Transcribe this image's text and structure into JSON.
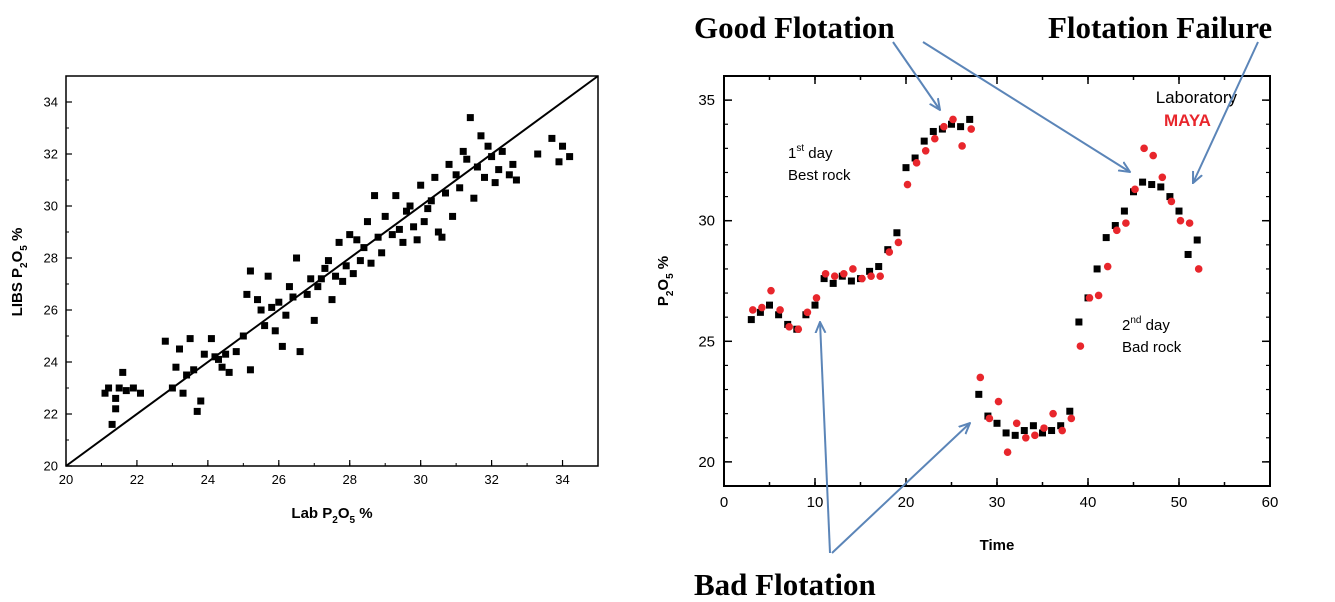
{
  "chart_data": [
    {
      "type": "scatter",
      "xlabel": "Lab P2O5 %",
      "ylabel": "LIBS P2O5 %",
      "xlim": [
        20,
        35
      ],
      "ylim": [
        20,
        35
      ],
      "xticks": [
        "20",
        "22",
        "24",
        "26",
        "28",
        "30",
        "32",
        "34"
      ],
      "yticks": [
        "20",
        "22",
        "24",
        "26",
        "28",
        "30",
        "32",
        "34"
      ],
      "reference_line": {
        "from": [
          20,
          20
        ],
        "to": [
          35,
          35
        ]
      },
      "series": [
        {
          "marker": "square",
          "color": "#000000",
          "points": [
            [
              21.1,
              22.8
            ],
            [
              21.2,
              23.0
            ],
            [
              21.3,
              21.6
            ],
            [
              21.4,
              22.6
            ],
            [
              21.4,
              22.2
            ],
            [
              21.5,
              23.0
            ],
            [
              21.6,
              23.6
            ],
            [
              21.7,
              22.9
            ],
            [
              21.9,
              23.0
            ],
            [
              22.1,
              22.8
            ],
            [
              22.8,
              24.8
            ],
            [
              23.0,
              23.0
            ],
            [
              23.1,
              23.8
            ],
            [
              23.2,
              24.5
            ],
            [
              23.3,
              22.8
            ],
            [
              23.4,
              23.5
            ],
            [
              23.5,
              24.9
            ],
            [
              23.6,
              23.7
            ],
            [
              23.7,
              22.1
            ],
            [
              23.8,
              22.5
            ],
            [
              23.9,
              24.3
            ],
            [
              24.1,
              24.9
            ],
            [
              24.2,
              24.2
            ],
            [
              24.3,
              24.1
            ],
            [
              24.4,
              23.8
            ],
            [
              24.5,
              24.3
            ],
            [
              24.6,
              23.6
            ],
            [
              24.8,
              24.4
            ],
            [
              25.0,
              25.0
            ],
            [
              25.2,
              23.7
            ],
            [
              25.1,
              26.6
            ],
            [
              25.2,
              27.5
            ],
            [
              25.4,
              26.4
            ],
            [
              25.5,
              26.0
            ],
            [
              25.6,
              25.4
            ],
            [
              25.7,
              27.3
            ],
            [
              25.8,
              26.1
            ],
            [
              25.9,
              25.2
            ],
            [
              26.0,
              26.3
            ],
            [
              26.1,
              24.6
            ],
            [
              26.2,
              25.8
            ],
            [
              26.3,
              26.9
            ],
            [
              26.4,
              26.5
            ],
            [
              26.5,
              28.0
            ],
            [
              26.6,
              24.4
            ],
            [
              26.8,
              26.6
            ],
            [
              26.9,
              27.2
            ],
            [
              27.0,
              25.6
            ],
            [
              27.1,
              26.9
            ],
            [
              27.2,
              27.2
            ],
            [
              27.3,
              27.6
            ],
            [
              27.4,
              27.9
            ],
            [
              27.5,
              26.4
            ],
            [
              27.6,
              27.3
            ],
            [
              27.7,
              28.6
            ],
            [
              27.8,
              27.1
            ],
            [
              27.9,
              27.7
            ],
            [
              28.0,
              28.9
            ],
            [
              28.1,
              27.4
            ],
            [
              28.2,
              28.7
            ],
            [
              28.3,
              27.9
            ],
            [
              28.4,
              28.4
            ],
            [
              28.5,
              29.4
            ],
            [
              28.6,
              27.8
            ],
            [
              28.7,
              30.4
            ],
            [
              28.8,
              28.8
            ],
            [
              28.9,
              28.2
            ],
            [
              29.0,
              29.6
            ],
            [
              29.2,
              28.9
            ],
            [
              29.3,
              30.4
            ],
            [
              29.4,
              29.1
            ],
            [
              29.5,
              28.6
            ],
            [
              29.6,
              29.8
            ],
            [
              29.7,
              30.0
            ],
            [
              29.8,
              29.2
            ],
            [
              29.9,
              28.7
            ],
            [
              30.0,
              30.8
            ],
            [
              30.1,
              29.4
            ],
            [
              30.2,
              29.9
            ],
            [
              30.3,
              30.2
            ],
            [
              30.4,
              31.1
            ],
            [
              30.5,
              29.0
            ],
            [
              30.6,
              28.8
            ],
            [
              30.7,
              30.5
            ],
            [
              30.8,
              31.6
            ],
            [
              30.9,
              29.6
            ],
            [
              31.0,
              31.2
            ],
            [
              31.1,
              30.7
            ],
            [
              31.2,
              32.1
            ],
            [
              31.3,
              31.8
            ],
            [
              31.4,
              33.4
            ],
            [
              31.5,
              30.3
            ],
            [
              31.6,
              31.5
            ],
            [
              31.7,
              32.7
            ],
            [
              31.8,
              31.1
            ],
            [
              31.9,
              32.3
            ],
            [
              32.0,
              31.9
            ],
            [
              32.1,
              30.9
            ],
            [
              32.2,
              31.4
            ],
            [
              32.3,
              32.1
            ],
            [
              32.5,
              31.2
            ],
            [
              32.6,
              31.6
            ],
            [
              32.7,
              31.0
            ],
            [
              33.3,
              32.0
            ],
            [
              33.7,
              32.6
            ],
            [
              33.9,
              31.7
            ],
            [
              34.0,
              32.3
            ],
            [
              34.2,
              31.9
            ]
          ]
        }
      ]
    },
    {
      "type": "scatter",
      "xlabel": "Time",
      "ylabel": "P2O5 %",
      "xlim": [
        0,
        60
      ],
      "ylim": [
        19,
        36
      ],
      "xticks": [
        "0",
        "10",
        "20",
        "30",
        "40",
        "50",
        "60"
      ],
      "yticks": [
        "20",
        "25",
        "30",
        "35"
      ],
      "legend": {
        "placement": "top-right",
        "entries": [
          "Laboratory",
          "MAYA"
        ]
      },
      "series": [
        {
          "name": "Laboratory",
          "marker": "square",
          "color": "#000000",
          "x": [
            3,
            4,
            5,
            6,
            7,
            8,
            9,
            10,
            11,
            12,
            13,
            14,
            15,
            16,
            17,
            18,
            19,
            20,
            21,
            22,
            23,
            24,
            25,
            26,
            27,
            28,
            29,
            30,
            31,
            32,
            33,
            34,
            35,
            36,
            37,
            38,
            39,
            40,
            41,
            42,
            43,
            44,
            45,
            46,
            47,
            48,
            49,
            50,
            51,
            52
          ],
          "y": [
            25.9,
            26.2,
            26.5,
            26.1,
            25.7,
            25.5,
            26.1,
            26.5,
            27.6,
            27.4,
            27.7,
            27.5,
            27.6,
            27.9,
            28.1,
            28.8,
            29.5,
            32.2,
            32.6,
            33.3,
            33.7,
            33.8,
            34.0,
            33.9,
            34.2,
            22.8,
            21.9,
            21.6,
            21.2,
            21.1,
            21.3,
            21.5,
            21.2,
            21.3,
            21.5,
            22.1,
            25.8,
            26.8,
            28.0,
            29.3,
            29.8,
            30.4,
            31.2,
            31.6,
            31.5,
            31.4,
            31.0,
            30.4,
            28.6,
            29.2
          ]
        },
        {
          "name": "MAYA",
          "marker": "circle",
          "color": "#e8262c",
          "x": [
            3,
            4,
            5,
            6,
            7,
            8,
            9,
            10,
            11,
            12,
            13,
            14,
            15,
            16,
            17,
            18,
            19,
            20,
            21,
            22,
            23,
            24,
            25,
            26,
            27,
            28,
            29,
            30,
            31,
            32,
            33,
            34,
            35,
            36,
            37,
            38,
            39,
            40,
            41,
            42,
            43,
            44,
            45,
            46,
            47,
            48,
            49,
            50,
            51,
            52
          ],
          "y": [
            26.3,
            26.4,
            27.1,
            26.3,
            25.6,
            25.5,
            26.2,
            26.8,
            27.8,
            27.7,
            27.8,
            28.0,
            27.6,
            27.7,
            27.7,
            28.7,
            29.1,
            31.5,
            32.4,
            32.9,
            33.4,
            33.9,
            34.2,
            33.1,
            33.8,
            23.5,
            21.8,
            22.5,
            20.4,
            21.6,
            21.0,
            21.1,
            21.4,
            22.0,
            21.3,
            21.8,
            24.8,
            26.8,
            26.9,
            28.1,
            29.6,
            29.9,
            31.3,
            33.0,
            32.7,
            31.8,
            30.8,
            30.0,
            29.9,
            28.0
          ]
        }
      ],
      "annotations": {
        "day1_line1": "1",
        "day1_sup": "st",
        "day1_line1_rest": " day",
        "day1_line2": "Best rock",
        "day2_line1": "2",
        "day2_sup": "nd",
        "day2_line1_rest": " day",
        "day2_line2": "Bad rock"
      }
    }
  ],
  "labels": {
    "good_flotation": "Good Flotation",
    "flotation_failure": "Flotation  Failure",
    "bad_flotation": "Bad Flotation"
  },
  "colors": {
    "laboratory": "#000000",
    "maya": "#e8262c",
    "arrow": "#5b85b8"
  }
}
